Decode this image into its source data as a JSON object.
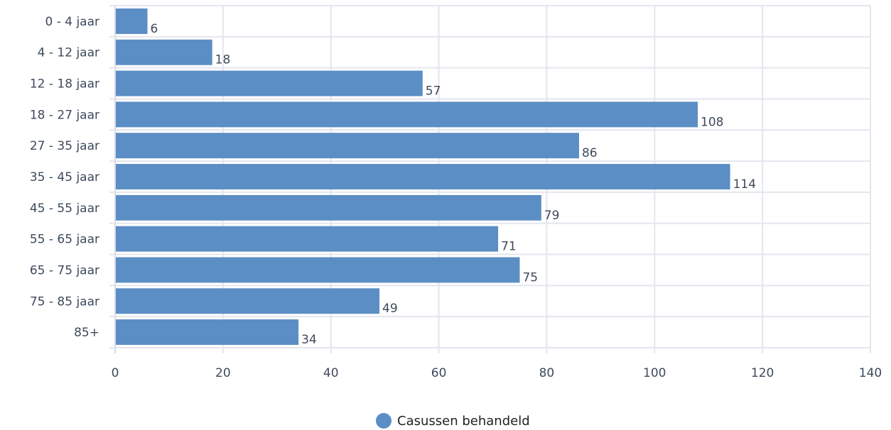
{
  "chart_data": {
    "type": "bar",
    "orientation": "horizontal",
    "categories": [
      "0 - 4 jaar",
      "4 - 12 jaar",
      "12 - 18 jaar",
      "18 - 27 jaar",
      "27 - 35 jaar",
      "35 - 45 jaar",
      "45 - 55 jaar",
      "55 - 65 jaar",
      "65 - 75 jaar",
      "75 - 85 jaar",
      "85+"
    ],
    "series": [
      {
        "name": "Casussen behandeld",
        "color": "#5b8ec4",
        "values": [
          6,
          18,
          57,
          108,
          86,
          114,
          79,
          71,
          75,
          49,
          34
        ]
      }
    ],
    "xlim": [
      0,
      140
    ],
    "xticks": [
      0,
      20,
      40,
      60,
      80,
      100,
      120,
      140
    ],
    "grid": true,
    "data_labels": true,
    "legend_position": "bottom-center",
    "title": "",
    "xlabel": "",
    "ylabel": ""
  }
}
